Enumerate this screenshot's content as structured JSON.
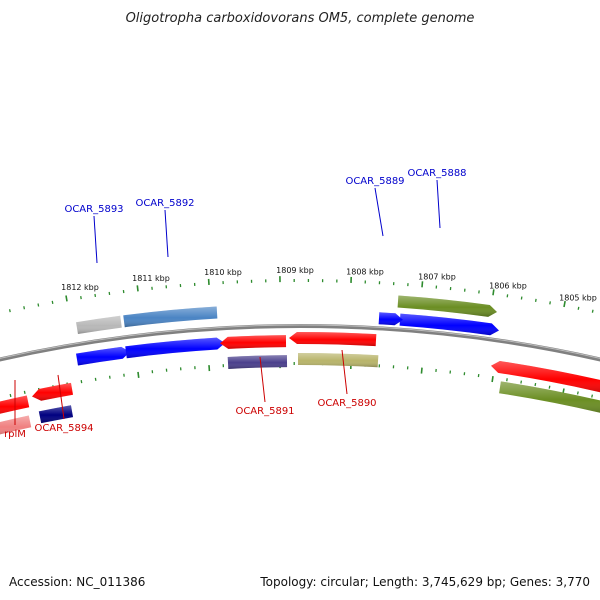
{
  "title": "Oligotropha carboxidovorans OM5, complete genome",
  "footer": {
    "accession": "Accession: NC_011386",
    "summary": "Topology: circular; Length: 3,745,629 bp; Genes: 3,770"
  },
  "ticks": [
    "1812 kbp",
    "1811 kbp",
    "1810 kbp",
    "1809 kbp",
    "1808 kbp",
    "1807 kbp",
    "1806 kbp",
    "1805 kbp"
  ],
  "gene_labels": {
    "ocar_5893": "OCAR_5893",
    "ocar_5892": "OCAR_5892",
    "ocar_5889": "OCAR_5889",
    "ocar_5888": "OCAR_5888",
    "ocar_5891": "OCAR_5891",
    "ocar_5890": "OCAR_5890",
    "ocar_5894": "OCAR_5894",
    "rplm": "rplM"
  },
  "colors": {
    "forward_label": "#0000cc",
    "reverse_label": "#cc0000",
    "tick_green": "#2e8b2e",
    "backbone": "#808080",
    "red": "#ff0000",
    "blue": "#0000ff",
    "steelblue": "#4a84c4",
    "gray": "#b8b8b8",
    "olive": "#6b8e23",
    "khaki": "#b8b46a",
    "slateblue": "#4a3f8c",
    "navy": "#000080",
    "pink": "#f08080"
  }
}
